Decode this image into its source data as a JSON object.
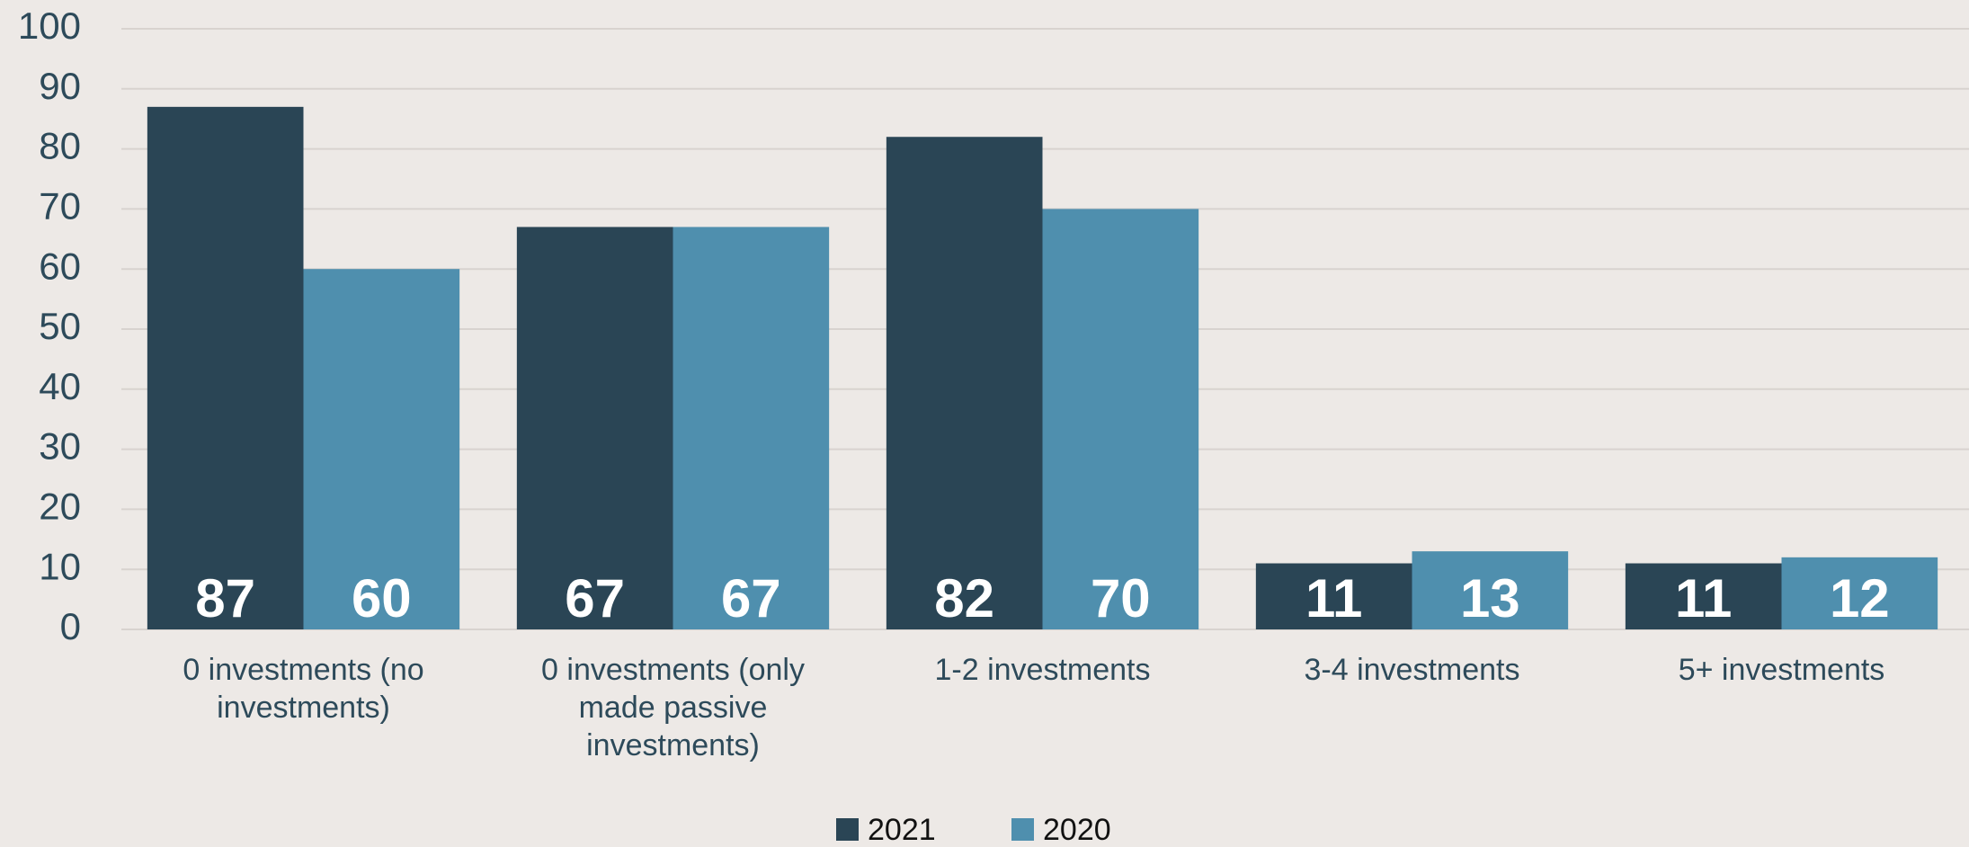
{
  "chart_data": {
    "type": "bar",
    "categories": [
      "0 investments (no investments)",
      "0 investments (only made passive investments)",
      "1-2 investments",
      "3-4 investments",
      "5+ investments"
    ],
    "series": [
      {
        "name": "2021",
        "color": "#2a4555",
        "values": [
          87,
          67,
          82,
          11,
          11
        ]
      },
      {
        "name": "2020",
        "color": "#4f8fae",
        "values": [
          60,
          67,
          70,
          13,
          12
        ]
      }
    ],
    "ylim": [
      0,
      100
    ],
    "yticks": [
      0,
      10,
      20,
      30,
      40,
      50,
      60,
      70,
      80,
      90,
      100
    ],
    "grid": true,
    "legend": "bottom"
  }
}
